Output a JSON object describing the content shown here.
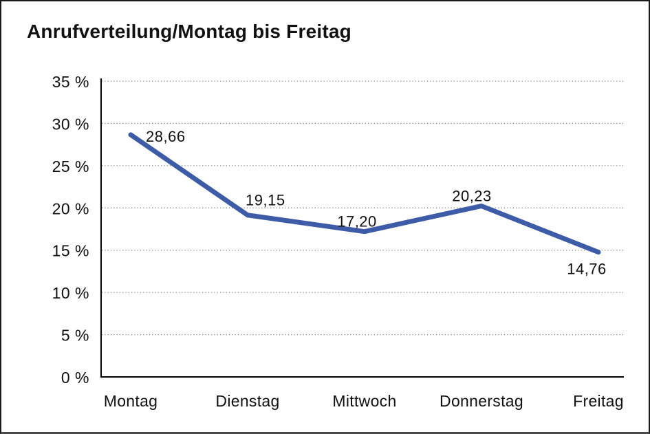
{
  "page": {
    "background": "#ffffff",
    "border_color": "#1a1a1a"
  },
  "chart_data": {
    "type": "line",
    "title": "Anrufverteilung/Montag bis Freitag",
    "categories": [
      "Montag",
      "Dienstag",
      "Mittwoch",
      "Donnerstag",
      "Freitag"
    ],
    "series": [
      {
        "name": "Anrufverteilung",
        "values": [
          28.66,
          19.15,
          17.2,
          20.23,
          14.76
        ]
      }
    ],
    "value_labels": [
      "28,66",
      "19,15",
      "17,20",
      "20,23",
      "14,76"
    ],
    "y_ticks": [
      {
        "value": 0,
        "label": "0 %"
      },
      {
        "value": 5,
        "label": "5 %"
      },
      {
        "value": 10,
        "label": "10 %"
      },
      {
        "value": 15,
        "label": "15 %"
      },
      {
        "value": 20,
        "label": "20 %"
      },
      {
        "value": 25,
        "label": "25 %"
      },
      {
        "value": 30,
        "label": "30 %"
      },
      {
        "value": 35,
        "label": "35 %"
      }
    ],
    "ylim": [
      0,
      35
    ],
    "xlabel": "",
    "ylabel": "",
    "grid": "horizontal-dotted",
    "legend": "none",
    "decimal_separator": ",",
    "line_color": "#3D5BA6",
    "text_color": "#111111",
    "grid_color": "#858585",
    "axis_color": "#000000"
  }
}
